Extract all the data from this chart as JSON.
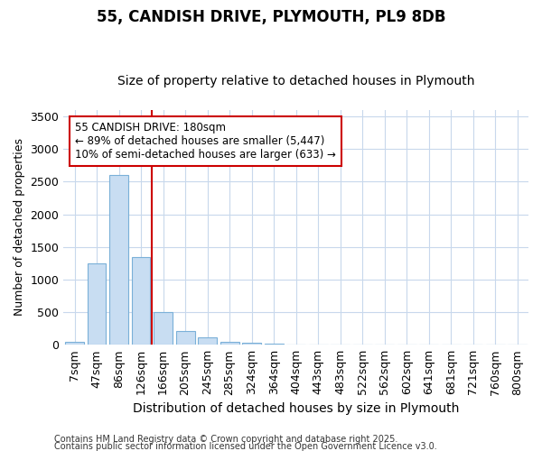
{
  "title1": "55, CANDISH DRIVE, PLYMOUTH, PL9 8DB",
  "title2": "Size of property relative to detached houses in Plymouth",
  "xlabel": "Distribution of detached houses by size in Plymouth",
  "ylabel": "Number of detached properties",
  "categories": [
    "7sqm",
    "47sqm",
    "86sqm",
    "126sqm",
    "166sqm",
    "205sqm",
    "245sqm",
    "285sqm",
    "324sqm",
    "364sqm",
    "404sqm",
    "443sqm",
    "483sqm",
    "522sqm",
    "562sqm",
    "602sqm",
    "641sqm",
    "681sqm",
    "721sqm",
    "760sqm",
    "800sqm"
  ],
  "values": [
    50,
    1250,
    2600,
    1350,
    500,
    205,
    110,
    50,
    30,
    15,
    0,
    0,
    0,
    0,
    0,
    0,
    0,
    0,
    0,
    0,
    0
  ],
  "bar_color": "#c8ddf2",
  "bar_edge_color": "#7ab0d8",
  "annotation_line1": "55 CANDISH DRIVE: 180sqm",
  "annotation_line2": "← 89% of detached houses are smaller (5,447)",
  "annotation_line3": "10% of semi-detached houses are larger (633) →",
  "vline_pos": 4.0,
  "vline_color": "#cc0000",
  "box_edge_color": "#cc0000",
  "footnote1": "Contains HM Land Registry data © Crown copyright and database right 2025.",
  "footnote2": "Contains public sector information licensed under the Open Government Licence v3.0.",
  "bg_color": "#ffffff",
  "plot_bg_color": "#ffffff",
  "grid_color": "#c8d8ec",
  "ylim": [
    0,
    3600
  ],
  "yticks": [
    0,
    500,
    1000,
    1500,
    2000,
    2500,
    3000,
    3500
  ],
  "title1_fontsize": 12,
  "title2_fontsize": 10,
  "xlabel_fontsize": 10,
  "ylabel_fontsize": 9,
  "tick_fontsize": 9,
  "ann_fontsize": 8.5,
  "footnote_fontsize": 7
}
